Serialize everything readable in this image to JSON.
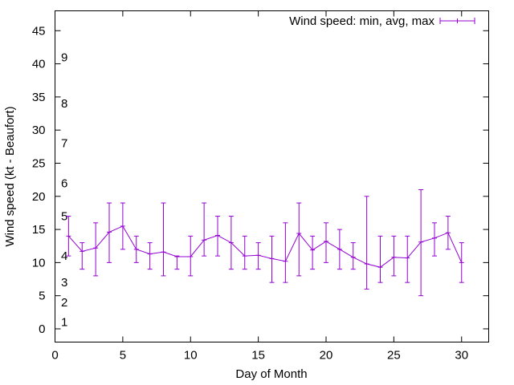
{
  "chart_data": {
    "type": "line",
    "title": "",
    "xlabel": "Day of Month",
    "ylabel": "Wind speed (kt - Beaufort)",
    "xlim": [
      0,
      32
    ],
    "ylim": [
      -2,
      48
    ],
    "x_ticks": [
      0,
      5,
      10,
      15,
      20,
      25,
      30
    ],
    "y_ticks": [
      0,
      5,
      10,
      15,
      20,
      25,
      30,
      35,
      40,
      45
    ],
    "grid": false,
    "legend_position": "top-right",
    "beaufort_labels": [
      {
        "label": "1",
        "y": 1
      },
      {
        "label": "2",
        "y": 4
      },
      {
        "label": "3",
        "y": 7
      },
      {
        "label": "4",
        "y": 11
      },
      {
        "label": "5",
        "y": 17
      },
      {
        "label": "6",
        "y": 22
      },
      {
        "label": "7",
        "y": 28
      },
      {
        "label": "8",
        "y": 34
      },
      {
        "label": "9",
        "y": 41
      }
    ],
    "series": [
      {
        "name": "Wind speed: min, avg, max",
        "color": "#9400d3",
        "x": [
          1,
          2,
          3,
          4,
          5,
          6,
          7,
          8,
          9,
          10,
          11,
          12,
          13,
          14,
          15,
          16,
          17,
          18,
          19,
          20,
          21,
          22,
          23,
          24,
          25,
          26,
          27,
          28,
          29,
          30
        ],
        "avg": [
          14,
          11.7,
          12.2,
          14.6,
          15.5,
          12,
          11.3,
          11.6,
          10.9,
          10.9,
          13.4,
          14.1,
          13,
          11,
          11.1,
          10.6,
          10.2,
          14.4,
          11.9,
          13.2,
          12,
          10.8,
          9.8,
          9.3,
          10.8,
          10.7,
          13.1,
          13.7,
          14.5,
          10
        ],
        "min": [
          11,
          9,
          8,
          10,
          12,
          10,
          9,
          8,
          9,
          8,
          11,
          11,
          9,
          9,
          9,
          7,
          7,
          8,
          9,
          10,
          9,
          9,
          6,
          7,
          8,
          7,
          5,
          11,
          12,
          7
        ],
        "max": [
          17,
          13,
          16,
          19,
          19,
          14,
          13,
          19,
          11,
          14,
          19,
          17,
          17,
          14,
          13,
          14,
          16,
          19,
          14,
          16,
          15,
          13,
          20,
          14,
          14,
          14,
          21,
          16,
          17,
          13
        ]
      }
    ]
  }
}
